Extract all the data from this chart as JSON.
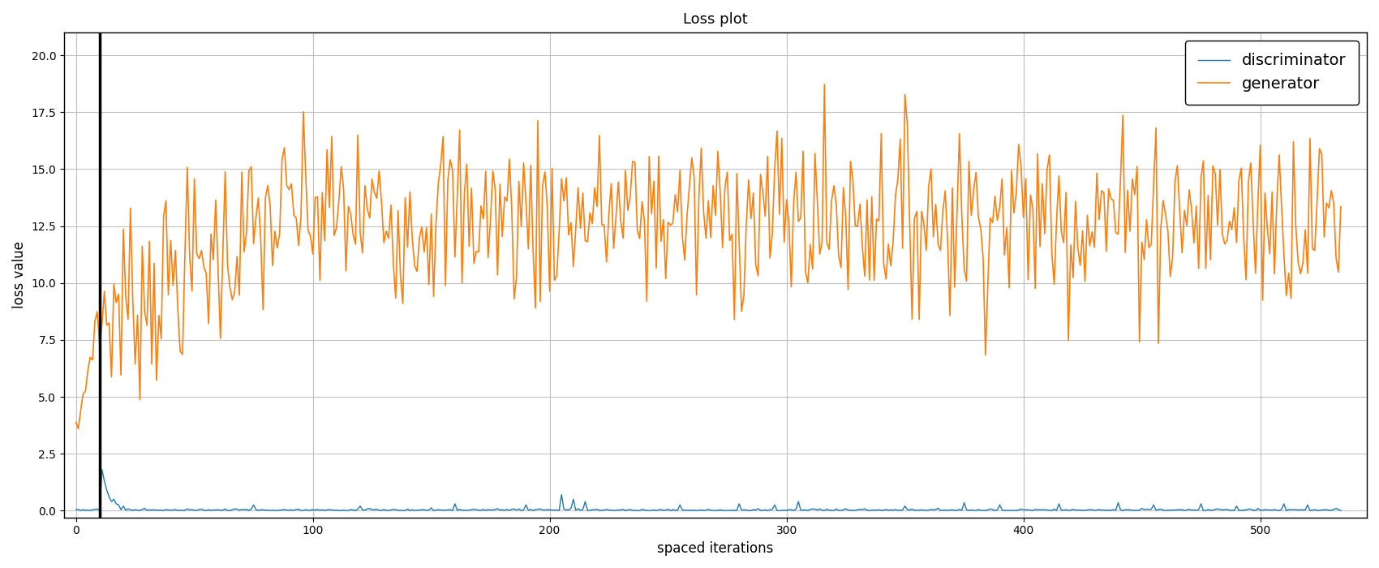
{
  "title": "Loss plot",
  "xlabel": "spaced iterations",
  "ylabel": "loss value",
  "ylim": [
    -0.3,
    21.0
  ],
  "xlim": [
    -5,
    545
  ],
  "vline_x": 10,
  "disc_color": "#1f77b4",
  "gen_color": "#ff7f0e",
  "disc_label": "discriminator",
  "gen_label": "generator",
  "grid_color": "#c0c0c0",
  "bg_color": "#ffffff",
  "title_fontsize": 13,
  "label_fontsize": 12,
  "legend_fontsize": 14,
  "yticks": [
    0.0,
    2.5,
    5.0,
    7.5,
    10.0,
    12.5,
    15.0,
    17.5,
    20.0
  ],
  "xticks": [
    0,
    100,
    200,
    300,
    400,
    500
  ]
}
